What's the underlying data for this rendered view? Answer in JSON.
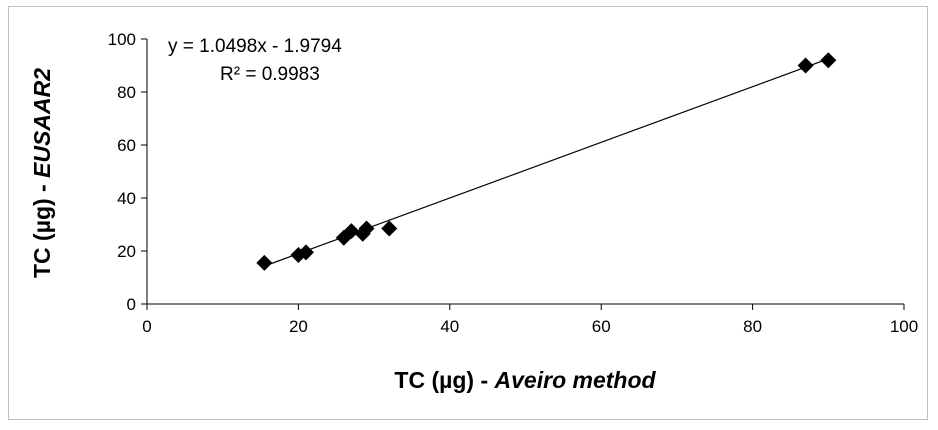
{
  "chart_data": {
    "type": "scatter",
    "xlabel": "TC (µg) - Aveiro method",
    "xlabel_plain": "TC (µg) - ",
    "xlabel_italic": "Aveiro method",
    "ylabel": "TC (µg) - EUSAAR2",
    "ylabel_plain": "TC (µg) - ",
    "ylabel_italic": "EUSAAR2",
    "xlim": [
      0,
      100
    ],
    "ylim": [
      0,
      100
    ],
    "xticks": [
      0,
      20,
      40,
      60,
      80,
      100
    ],
    "yticks": [
      0,
      20,
      40,
      60,
      80,
      100
    ],
    "grid": false,
    "marker": "diamond",
    "marker_color": "#000000",
    "series": [
      {
        "x": [
          15.5,
          20,
          21,
          26,
          27,
          28.5,
          29,
          32,
          87,
          90
        ],
        "y": [
          15.5,
          18.5,
          19.5,
          25,
          27.5,
          26.5,
          28.5,
          28.5,
          90,
          92
        ]
      }
    ],
    "trendline": {
      "slope": 1.0498,
      "intercept": -1.9794,
      "x_range": [
        15.5,
        90
      ],
      "equation_label": "y = 1.0498x  - 1.9794",
      "r2_label": "R² = 0.9983"
    }
  }
}
